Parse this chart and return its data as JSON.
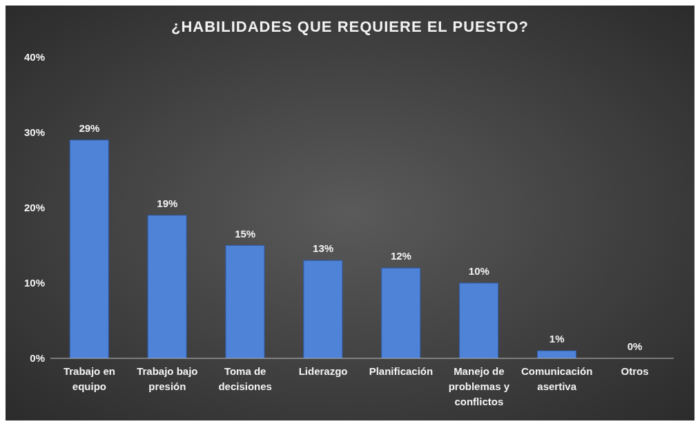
{
  "chart_data": {
    "type": "bar",
    "title": "¿HABILIDADES QUE REQUIERE EL PUESTO?",
    "categories": [
      "Trabajo en equipo",
      "Trabajo bajo presión",
      "Toma de decisiones",
      "Liderazgo",
      "Planificación",
      "Manejo de problemas y conflictos",
      "Comunicación asertiva",
      "Otros"
    ],
    "values": [
      29,
      19,
      15,
      13,
      12,
      10,
      1,
      0
    ],
    "value_labels": [
      "29%",
      "19%",
      "15%",
      "13%",
      "12%",
      "10%",
      "1%",
      "0%"
    ],
    "color": "#4f83d8",
    "ylim": [
      0,
      40
    ],
    "yticks": [
      {
        "value": 0,
        "label": "0%"
      },
      {
        "value": 10,
        "label": "10%"
      },
      {
        "value": 20,
        "label": "20%"
      },
      {
        "value": 30,
        "label": "30%"
      },
      {
        "value": 40,
        "label": "40%"
      }
    ]
  }
}
